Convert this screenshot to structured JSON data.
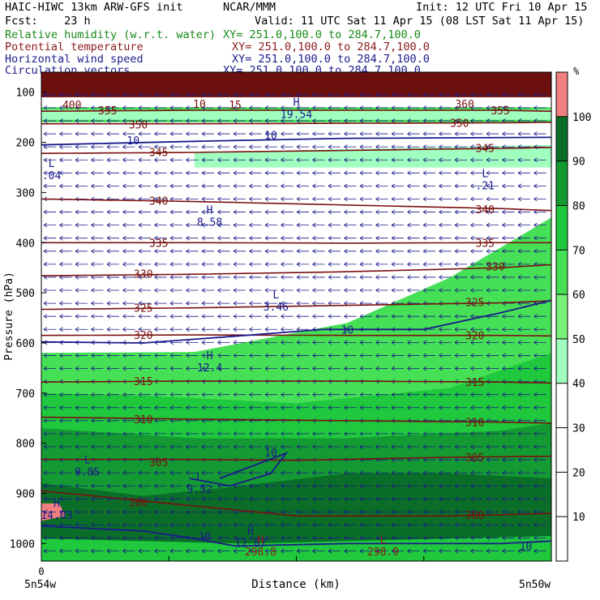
{
  "header": {
    "model": "HAIC-HIWC 13km ARW-GFS init",
    "org": "NCAR/MMM",
    "init": "Init: 12 UTC Fri 10 Apr 15",
    "fcst": "Fcst:    23 h",
    "valid": "Valid: 11 UTC Sat 11 Apr 15 (08 LST Sat 11 Apr 15)",
    "fields": [
      {
        "name": "Relative humidity (w.r.t. water)",
        "xy": "XY= 251.0,100.0 to 284.7,100.0",
        "color": "#1a8a1a"
      },
      {
        "name": "Potential temperature",
        "xy": "XY= 251.0,100.0 to 284.7,100.0",
        "color": "#8b1a1a"
      },
      {
        "name": "Horizontal wind speed",
        "xy": "XY= 251.0,100.0 to 284.7,100.0",
        "color": "#1a1a8b"
      },
      {
        "name": "Circulation vectors",
        "xy": "XY= 251.0,100.0 to 284.7,100.0",
        "color": "#1a1a8b"
      }
    ]
  },
  "chart_data": {
    "type": "cross-section",
    "xlabel": "Distance (km)",
    "ylabel": "Pressure (hPa)",
    "x_start_tick": "0",
    "x_left_label": "5n54w",
    "x_right_label": "5n50w",
    "y_ticks": [
      100,
      200,
      300,
      400,
      500,
      600,
      700,
      800,
      900,
      1000
    ],
    "ylim": [
      1035,
      60
    ],
    "legend": {
      "unit": "%",
      "levels": [
        100,
        90,
        80,
        70,
        60,
        50,
        40,
        30,
        20,
        10
      ],
      "colors": [
        "#f08080",
        "#0a6e28",
        "#149a32",
        "#1fc83c",
        "#46e056",
        "#78f078",
        "#a0ffbe",
        "#ffffff",
        "#ffffff",
        "#ffffff",
        "#ffffff"
      ]
    },
    "theta_contours": [
      {
        "label": "300",
        "x": [
          0,
          0.2,
          0.5,
          0.8,
          1
        ],
        "p": [
          895,
          915,
          945,
          945,
          940
        ]
      },
      {
        "label": "305",
        "x": [
          0,
          0.25,
          0.5,
          0.8,
          1
        ],
        "p": [
          832,
          832,
          834,
          828,
          826
        ]
      },
      {
        "label": "310",
        "x": [
          0,
          0.3,
          0.6,
          0.9,
          1
        ],
        "p": [
          748,
          752,
          755,
          758,
          760
        ]
      },
      {
        "label": "315",
        "x": [
          0,
          0.3,
          0.6,
          0.9,
          1
        ],
        "p": [
          678,
          676,
          676,
          678,
          680
        ]
      },
      {
        "label": "320",
        "x": [
          0,
          0.3,
          0.6,
          0.9,
          1
        ],
        "p": [
          585,
          584,
          585,
          585,
          586
        ]
      },
      {
        "label": "325",
        "x": [
          0,
          0.3,
          0.6,
          0.9,
          1
        ],
        "p": [
          533,
          530,
          525,
          520,
          516
        ]
      },
      {
        "label": "330",
        "x": [
          0,
          0.3,
          0.6,
          0.9,
          1
        ],
        "p": [
          466,
          463,
          458,
          450,
          444
        ]
      },
      {
        "label": "335",
        "x": [
          0,
          0.3,
          0.6,
          0.9,
          1
        ],
        "p": [
          400,
          400,
          401,
          400,
          400
        ]
      },
      {
        "label": "340",
        "x": [
          0,
          0.3,
          0.6,
          0.9,
          1
        ],
        "p": [
          313,
          318,
          325,
          332,
          336
        ]
      },
      {
        "label": "345",
        "x": [
          0,
          0.3,
          0.6,
          0.9,
          1
        ],
        "p": [
          222,
          220,
          216,
          212,
          210
        ]
      },
      {
        "label": "350",
        "x": [
          0,
          0.3,
          0.6,
          0.9,
          1
        ],
        "p": [
          163,
          163,
          162,
          161,
          160
        ]
      },
      {
        "label": "355",
        "x": [
          0,
          0.3,
          0.6,
          0.9,
          1
        ],
        "p": [
          138,
          136,
          136,
          136,
          138
        ]
      }
    ],
    "theta_labels": [
      {
        "text": "300",
        "x": 0.19,
        "p": 918
      },
      {
        "text": "300",
        "x": 0.85,
        "p": 943
      },
      {
        "text": "305",
        "x": 0.23,
        "p": 838
      },
      {
        "text": "305",
        "x": 0.85,
        "p": 828
      },
      {
        "text": "310",
        "x": 0.2,
        "p": 752
      },
      {
        "text": "310",
        "x": 0.85,
        "p": 758
      },
      {
        "text": "315",
        "x": 0.2,
        "p": 676
      },
      {
        "text": "315",
        "x": 0.85,
        "p": 678
      },
      {
        "text": "320",
        "x": 0.2,
        "p": 584
      },
      {
        "text": "320",
        "x": 0.85,
        "p": 585
      },
      {
        "text": "325",
        "x": 0.2,
        "p": 530
      },
      {
        "text": "325",
        "x": 0.85,
        "p": 518
      },
      {
        "text": "330",
        "x": 0.2,
        "p": 462
      },
      {
        "text": "330",
        "x": 0.89,
        "p": 447
      },
      {
        "text": "335",
        "x": 0.23,
        "p": 400
      },
      {
        "text": "335",
        "x": 0.87,
        "p": 400
      },
      {
        "text": "340",
        "x": 0.23,
        "p": 316
      },
      {
        "text": "340",
        "x": 0.87,
        "p": 333
      },
      {
        "text": "345",
        "x": 0.23,
        "p": 219
      },
      {
        "text": "345",
        "x": 0.87,
        "p": 211
      },
      {
        "text": "350",
        "x": 0.19,
        "p": 164
      },
      {
        "text": "350",
        "x": 0.82,
        "p": 161
      },
      {
        "text": "355",
        "x": 0.13,
        "p": 136
      },
      {
        "text": "355",
        "x": 0.9,
        "p": 136
      },
      {
        "text": "360",
        "x": 0.83,
        "p": 123
      },
      {
        "text": "400",
        "x": 0.06,
        "p": 125
      },
      {
        "text": "10",
        "x": 0.31,
        "p": 123
      },
      {
        "text": "15",
        "x": 0.38,
        "p": 125
      }
    ],
    "wind_labels": [
      {
        "text": "10",
        "x": 0.18,
        "p": 196
      },
      {
        "text": "10",
        "x": 0.45,
        "p": 185
      },
      {
        "text": "10",
        "x": 0.6,
        "p": 573
      },
      {
        "text": "10",
        "x": 0.45,
        "p": 818
      },
      {
        "text": "10",
        "x": 0.32,
        "p": 985
      },
      {
        "text": "10",
        "x": 0.95,
        "p": 1005
      }
    ],
    "extrema": [
      {
        "type": "H",
        "value": "19.54",
        "x": 0.5,
        "p": 140,
        "color": "#1a1a8b"
      },
      {
        "type": "L",
        "value": ".04",
        "x": 0.02,
        "p": 262,
        "color": "#1a1a8b"
      },
      {
        "type": "L",
        "value": ".21",
        "x": 0.87,
        "p": 282,
        "color": "#1a1a8b"
      },
      {
        "type": "H",
        "value": "8.58",
        "x": 0.33,
        "p": 355,
        "color": "#1a1a8b"
      },
      {
        "type": "L",
        "value": "3.46",
        "x": 0.46,
        "p": 524,
        "color": "#1a1a8b"
      },
      {
        "type": "H",
        "value": "12.4",
        "x": 0.33,
        "p": 645,
        "color": "#1a1a8b"
      },
      {
        "type": "L",
        "value": "9.85",
        "x": 0.09,
        "p": 853,
        "color": "#1a1a8b"
      },
      {
        "type": "L",
        "value": "9.52",
        "x": 0.31,
        "p": 888,
        "color": "#1a1a8b"
      },
      {
        "type": "H",
        "value": "14.03",
        "x": 0.03,
        "p": 940,
        "color": "#1a1a8b"
      },
      {
        "type": "H",
        "value": "12.87",
        "x": 0.41,
        "p": 995,
        "color": "#1a1a8b"
      },
      {
        "type": "L",
        "value": "298.9",
        "x": 0.67,
        "p": 1050,
        "color": "#8b1a1a"
      },
      {
        "type": "H",
        "value": "298.8",
        "x": 0.43,
        "p": 1060,
        "color": "#8b1a1a"
      }
    ]
  }
}
